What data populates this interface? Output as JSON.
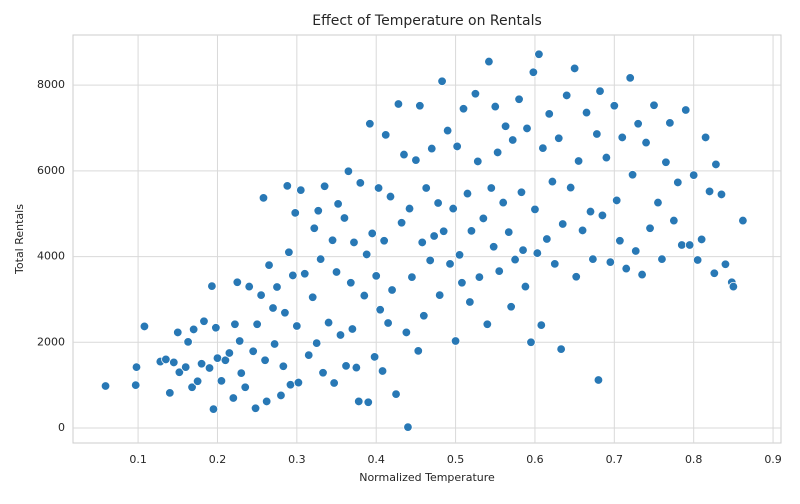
{
  "chart_data": {
    "type": "scatter",
    "title": "Effect of Temperature on Rentals",
    "x_label": "Normalized Temperature",
    "y_label": "Total Rentals",
    "color": "#2878b5",
    "grid": true,
    "xlim": [
      0.018,
      0.91
    ],
    "ylim": [
      -350,
      9170
    ],
    "xticks": [
      0.1,
      0.2,
      0.3,
      0.4,
      0.5,
      0.6,
      0.7,
      0.8,
      0.9
    ],
    "yticks": [
      0,
      2000,
      4000,
      6000,
      8000
    ],
    "x": [
      0.059,
      0.097,
      0.098,
      0.108,
      0.128,
      0.135,
      0.14,
      0.145,
      0.15,
      0.152,
      0.16,
      0.163,
      0.168,
      0.17,
      0.175,
      0.18,
      0.183,
      0.19,
      0.193,
      0.195,
      0.198,
      0.2,
      0.205,
      0.21,
      0.215,
      0.22,
      0.222,
      0.225,
      0.228,
      0.23,
      0.235,
      0.24,
      0.245,
      0.248,
      0.25,
      0.255,
      0.258,
      0.26,
      0.262,
      0.265,
      0.27,
      0.272,
      0.275,
      0.28,
      0.283,
      0.285,
      0.288,
      0.29,
      0.292,
      0.295,
      0.298,
      0.3,
      0.302,
      0.305,
      0.31,
      0.315,
      0.32,
      0.322,
      0.325,
      0.327,
      0.33,
      0.333,
      0.335,
      0.34,
      0.345,
      0.347,
      0.35,
      0.352,
      0.355,
      0.36,
      0.362,
      0.365,
      0.368,
      0.37,
      0.372,
      0.375,
      0.378,
      0.38,
      0.385,
      0.388,
      0.39,
      0.392,
      0.395,
      0.398,
      0.4,
      0.403,
      0.405,
      0.408,
      0.41,
      0.412,
      0.415,
      0.418,
      0.42,
      0.425,
      0.428,
      0.432,
      0.435,
      0.438,
      0.44,
      0.442,
      0.445,
      0.45,
      0.453,
      0.455,
      0.458,
      0.46,
      0.463,
      0.468,
      0.47,
      0.473,
      0.478,
      0.48,
      0.483,
      0.485,
      0.49,
      0.493,
      0.497,
      0.5,
      0.502,
      0.505,
      0.508,
      0.51,
      0.515,
      0.518,
      0.52,
      0.525,
      0.528,
      0.53,
      0.535,
      0.54,
      0.542,
      0.545,
      0.548,
      0.55,
      0.553,
      0.555,
      0.56,
      0.563,
      0.567,
      0.57,
      0.572,
      0.575,
      0.58,
      0.583,
      0.585,
      0.588,
      0.59,
      0.595,
      0.598,
      0.6,
      0.603,
      0.605,
      0.608,
      0.61,
      0.615,
      0.618,
      0.622,
      0.625,
      0.63,
      0.633,
      0.635,
      0.64,
      0.645,
      0.65,
      0.652,
      0.655,
      0.66,
      0.665,
      0.67,
      0.673,
      0.678,
      0.68,
      0.682,
      0.685,
      0.69,
      0.695,
      0.7,
      0.703,
      0.707,
      0.71,
      0.715,
      0.72,
      0.723,
      0.727,
      0.73,
      0.735,
      0.74,
      0.745,
      0.75,
      0.755,
      0.76,
      0.765,
      0.77,
      0.775,
      0.78,
      0.785,
      0.79,
      0.795,
      0.8,
      0.805,
      0.81,
      0.815,
      0.82,
      0.826,
      0.828,
      0.835,
      0.84,
      0.848,
      0.85,
      0.862
    ],
    "values": [
      980,
      1000,
      1420,
      2370,
      1550,
      1600,
      820,
      1530,
      2230,
      1300,
      1420,
      2010,
      950,
      2300,
      1090,
      1500,
      2490,
      1400,
      3310,
      440,
      2340,
      1630,
      1100,
      1580,
      1750,
      700,
      2420,
      3400,
      2030,
      1280,
      950,
      3300,
      1790,
      460,
      2420,
      3100,
      5370,
      1580,
      620,
      3800,
      2800,
      1960,
      3290,
      760,
      1440,
      2690,
      5650,
      4100,
      1010,
      3560,
      5020,
      2380,
      1060,
      5550,
      3600,
      1700,
      3050,
      4660,
      1980,
      5070,
      3940,
      1290,
      5640,
      2460,
      4380,
      1050,
      3640,
      5230,
      2170,
      4900,
      1450,
      5990,
      3390,
      2310,
      4330,
      1410,
      620,
      5720,
      3090,
      4050,
      600,
      7100,
      4540,
      1660,
      3550,
      5600,
      2760,
      1330,
      4370,
      6840,
      2450,
      5400,
      3220,
      790,
      7560,
      4790,
      6380,
      2230,
      20,
      5120,
      3520,
      6250,
      1800,
      7520,
      4330,
      2620,
      5600,
      3910,
      6520,
      4480,
      5250,
      3100,
      8090,
      4590,
      6940,
      3830,
      5120,
      2030,
      6570,
      4040,
      3390,
      7450,
      5470,
      2940,
      4600,
      7800,
      6220,
      3520,
      4890,
      2420,
      8550,
      5600,
      4230,
      7500,
      6430,
      3660,
      5260,
      7040,
      4570,
      2830,
      6720,
      3930,
      7670,
      5500,
      4150,
      3300,
      6990,
      2000,
      8300,
      5100,
      4080,
      8720,
      2400,
      6530,
      4410,
      7330,
      5750,
      3830,
      6760,
      1840,
      4760,
      7760,
      5610,
      8390,
      3530,
      6230,
      4610,
      7360,
      5050,
      3940,
      6860,
      1120,
      7860,
      4960,
      6310,
      3870,
      7520,
      5310,
      4370,
      6780,
      3720,
      8170,
      5910,
      4130,
      7100,
      3580,
      6660,
      4660,
      7530,
      5260,
      3940,
      6200,
      7120,
      4840,
      5730,
      4270,
      7420,
      4270,
      5900,
      3920,
      4400,
      6780,
      5520,
      3610,
      6150,
      5450,
      3820,
      3400,
      3300,
      4840
    ]
  }
}
